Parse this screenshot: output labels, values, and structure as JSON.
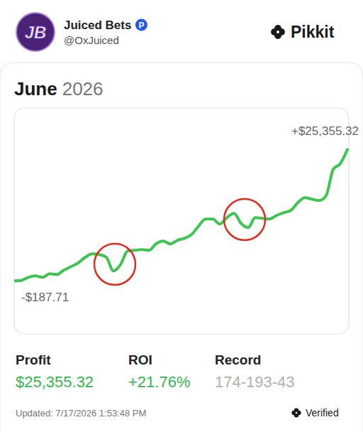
{
  "header": {
    "logo_text": "JB",
    "name": "Juiced Bets",
    "badge": "P",
    "handle": "@OxJuiced",
    "brand": "Pikkit"
  },
  "chart_data": {
    "type": "line",
    "title": "June",
    "subtitle": "2026",
    "values": [
      -187.71,
      -100,
      502,
      778,
      502,
      1193,
      1054,
      1883,
      2573,
      3264,
      4368,
      5059,
      4921,
      4368,
      1745,
      2988,
      5611,
      5749,
      5887,
      5749,
      6992,
      7544,
      6992,
      7682,
      8096,
      8787,
      10443,
      11824,
      11824,
      10858,
      12100,
      12929,
      10996,
      10167,
      12100,
      11962,
      11824,
      12514,
      13067,
      13481,
      15000,
      15966,
      15690,
      15414,
      16380,
      21489,
      22594,
      25355.32
    ],
    "color": "#3cc651",
    "xlim": [
      0,
      47
    ],
    "ylim": [
      -10500,
      33400
    ],
    "tick_labels": false,
    "grid": false,
    "annotations": [
      "+$25,355.32",
      "-$187.71"
    ]
  },
  "stats": [
    {
      "label": "Profit",
      "value": "$25,355.32"
    },
    {
      "label": "ROI",
      "value": "+21.76%"
    },
    {
      "label": "Record",
      "value": "174-193-43"
    }
  ],
  "footer": {
    "updated": "Updated: 7/17/2026 1:53:48 PM",
    "verified": "Verified"
  }
}
